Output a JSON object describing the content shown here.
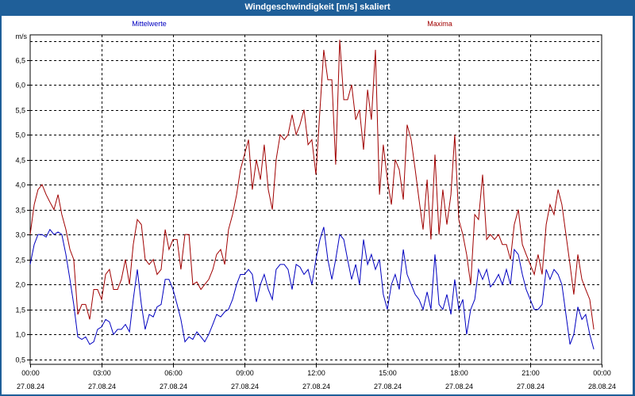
{
  "window": {
    "title": "Windgeschwindigkeit [m/s] skaliert"
  },
  "chart_data": {
    "type": "line",
    "title": "Windgeschwindigkeit [m/s] skaliert",
    "ylabel": "m/s",
    "ylim": [
      0.4,
      7.0
    ],
    "yticks": [
      0.5,
      1.0,
      1.5,
      2.0,
      2.5,
      3.0,
      3.5,
      4.0,
      4.5,
      5.0,
      5.5,
      6.0,
      6.5
    ],
    "ytick_labels": [
      "0,5",
      "1,0",
      "1,5",
      "2,0",
      "2,5",
      "3,0",
      "3,5",
      "4,0",
      "4,5",
      "5,0",
      "5,5",
      "6,0",
      "6,5"
    ],
    "xlim_hours": [
      0,
      24
    ],
    "xticks": [
      {
        "hour": 0,
        "time": "00:00",
        "date": "27.08.24"
      },
      {
        "hour": 3,
        "time": "03:00",
        "date": "27.08.24"
      },
      {
        "hour": 6,
        "time": "06:00",
        "date": "27.08.24"
      },
      {
        "hour": 9,
        "time": "09:00",
        "date": "27.08.24"
      },
      {
        "hour": 12,
        "time": "12:00",
        "date": "27.08.24"
      },
      {
        "hour": 15,
        "time": "15:00",
        "date": "27.08.24"
      },
      {
        "hour": 18,
        "time": "18:00",
        "date": "27.08.24"
      },
      {
        "hour": 21,
        "time": "21:00",
        "date": "27.08.24"
      },
      {
        "hour": 24,
        "time": "00:00",
        "date": "28.08.24"
      }
    ],
    "grid": true,
    "series": [
      {
        "name": "Mittelwerte",
        "color": "#0000c0",
        "points": [
          [
            0.0,
            2.4
          ],
          [
            0.17,
            2.8
          ],
          [
            0.33,
            3.0
          ],
          [
            0.5,
            3.0
          ],
          [
            0.67,
            2.95
          ],
          [
            0.83,
            3.1
          ],
          [
            1.0,
            3.0
          ],
          [
            1.17,
            3.05
          ],
          [
            1.33,
            3.0
          ],
          [
            1.5,
            2.6
          ],
          [
            1.67,
            2.1
          ],
          [
            1.83,
            1.6
          ],
          [
            2.0,
            0.95
          ],
          [
            2.17,
            0.9
          ],
          [
            2.33,
            0.95
          ],
          [
            2.5,
            0.8
          ],
          [
            2.67,
            0.85
          ],
          [
            2.83,
            1.1
          ],
          [
            3.0,
            1.15
          ],
          [
            3.17,
            1.3
          ],
          [
            3.33,
            1.25
          ],
          [
            3.5,
            1.0
          ],
          [
            3.67,
            1.1
          ],
          [
            3.83,
            1.1
          ],
          [
            4.0,
            1.2
          ],
          [
            4.17,
            1.05
          ],
          [
            4.33,
            1.7
          ],
          [
            4.5,
            2.3
          ],
          [
            4.67,
            1.6
          ],
          [
            4.83,
            1.1
          ],
          [
            5.0,
            1.4
          ],
          [
            5.17,
            1.35
          ],
          [
            5.33,
            1.55
          ],
          [
            5.5,
            1.6
          ],
          [
            5.67,
            2.1
          ],
          [
            5.83,
            2.1
          ],
          [
            6.0,
            1.9
          ],
          [
            6.17,
            1.6
          ],
          [
            6.33,
            1.3
          ],
          [
            6.5,
            0.85
          ],
          [
            6.67,
            0.95
          ],
          [
            6.83,
            0.9
          ],
          [
            7.0,
            1.05
          ],
          [
            7.17,
            0.95
          ],
          [
            7.33,
            0.85
          ],
          [
            7.5,
            1.0
          ],
          [
            7.67,
            1.2
          ],
          [
            7.83,
            1.4
          ],
          [
            8.0,
            1.35
          ],
          [
            8.17,
            1.45
          ],
          [
            8.33,
            1.5
          ],
          [
            8.5,
            1.7
          ],
          [
            8.67,
            2.0
          ],
          [
            8.83,
            2.2
          ],
          [
            9.0,
            2.2
          ],
          [
            9.17,
            2.3
          ],
          [
            9.33,
            2.2
          ],
          [
            9.5,
            1.65
          ],
          [
            9.67,
            2.0
          ],
          [
            9.83,
            2.2
          ],
          [
            10.0,
            1.9
          ],
          [
            10.17,
            1.7
          ],
          [
            10.33,
            2.3
          ],
          [
            10.5,
            2.4
          ],
          [
            10.67,
            2.4
          ],
          [
            10.83,
            2.3
          ],
          [
            11.0,
            1.9
          ],
          [
            11.17,
            2.4
          ],
          [
            11.33,
            2.35
          ],
          [
            11.5,
            2.2
          ],
          [
            11.67,
            2.3
          ],
          [
            11.83,
            2.0
          ],
          [
            12.0,
            2.5
          ],
          [
            12.17,
            2.9
          ],
          [
            12.33,
            3.15
          ],
          [
            12.5,
            2.5
          ],
          [
            12.67,
            2.1
          ],
          [
            12.83,
            2.5
          ],
          [
            13.0,
            3.0
          ],
          [
            13.17,
            2.9
          ],
          [
            13.33,
            2.5
          ],
          [
            13.5,
            2.1
          ],
          [
            13.67,
            2.4
          ],
          [
            13.83,
            2.0
          ],
          [
            14.0,
            2.9
          ],
          [
            14.17,
            2.4
          ],
          [
            14.33,
            2.6
          ],
          [
            14.5,
            2.3
          ],
          [
            14.67,
            2.5
          ],
          [
            14.83,
            1.8
          ],
          [
            15.0,
            1.5
          ],
          [
            15.17,
            2.0
          ],
          [
            15.33,
            2.2
          ],
          [
            15.5,
            1.9
          ],
          [
            15.67,
            2.7
          ],
          [
            15.83,
            2.2
          ],
          [
            16.0,
            2.0
          ],
          [
            16.17,
            1.8
          ],
          [
            16.33,
            1.7
          ],
          [
            16.5,
            1.5
          ],
          [
            16.67,
            1.85
          ],
          [
            16.83,
            1.5
          ],
          [
            17.0,
            2.6
          ],
          [
            17.17,
            1.6
          ],
          [
            17.33,
            1.5
          ],
          [
            17.5,
            1.8
          ],
          [
            17.67,
            1.4
          ],
          [
            17.83,
            2.1
          ],
          [
            18.0,
            1.5
          ],
          [
            18.17,
            1.7
          ],
          [
            18.33,
            1.0
          ],
          [
            18.5,
            1.5
          ],
          [
            18.67,
            1.7
          ],
          [
            18.83,
            2.3
          ],
          [
            19.0,
            2.1
          ],
          [
            19.17,
            2.3
          ],
          [
            19.33,
            1.95
          ],
          [
            19.5,
            2.05
          ],
          [
            19.67,
            2.2
          ],
          [
            19.83,
            2.0
          ],
          [
            20.0,
            2.3
          ],
          [
            20.17,
            2.0
          ],
          [
            20.33,
            2.7
          ],
          [
            20.5,
            2.6
          ],
          [
            20.67,
            2.2
          ],
          [
            20.83,
            1.9
          ],
          [
            21.0,
            1.7
          ],
          [
            21.17,
            1.5
          ],
          [
            21.33,
            1.5
          ],
          [
            21.5,
            1.6
          ],
          [
            21.67,
            2.3
          ],
          [
            21.83,
            2.1
          ],
          [
            22.0,
            2.3
          ],
          [
            22.17,
            2.2
          ],
          [
            22.33,
            2.0
          ],
          [
            22.5,
            1.4
          ],
          [
            22.67,
            0.8
          ],
          [
            22.83,
            1.0
          ],
          [
            23.0,
            1.55
          ],
          [
            23.17,
            1.3
          ],
          [
            23.33,
            1.4
          ],
          [
            23.5,
            1.0
          ],
          [
            23.67,
            0.7
          ]
        ]
      },
      {
        "name": "Maxima",
        "color": "#a00000",
        "points": [
          [
            0.0,
            3.0
          ],
          [
            0.17,
            3.6
          ],
          [
            0.33,
            3.9
          ],
          [
            0.5,
            4.0
          ],
          [
            0.67,
            3.8
          ],
          [
            0.83,
            3.65
          ],
          [
            1.0,
            3.5
          ],
          [
            1.17,
            3.8
          ],
          [
            1.33,
            3.4
          ],
          [
            1.5,
            3.1
          ],
          [
            1.67,
            2.7
          ],
          [
            1.83,
            2.5
          ],
          [
            2.0,
            1.4
          ],
          [
            2.17,
            1.6
          ],
          [
            2.33,
            1.6
          ],
          [
            2.5,
            1.3
          ],
          [
            2.67,
            1.9
          ],
          [
            2.83,
            1.9
          ],
          [
            3.0,
            1.7
          ],
          [
            3.17,
            2.2
          ],
          [
            3.33,
            2.3
          ],
          [
            3.5,
            1.9
          ],
          [
            3.67,
            1.9
          ],
          [
            3.83,
            2.1
          ],
          [
            4.0,
            2.5
          ],
          [
            4.17,
            2.0
          ],
          [
            4.33,
            2.8
          ],
          [
            4.5,
            3.3
          ],
          [
            4.67,
            3.2
          ],
          [
            4.83,
            2.5
          ],
          [
            5.0,
            2.4
          ],
          [
            5.17,
            2.5
          ],
          [
            5.33,
            2.2
          ],
          [
            5.5,
            2.3
          ],
          [
            5.67,
            3.1
          ],
          [
            5.83,
            2.7
          ],
          [
            6.0,
            2.9
          ],
          [
            6.17,
            2.9
          ],
          [
            6.33,
            2.3
          ],
          [
            6.5,
            3.0
          ],
          [
            6.67,
            3.0
          ],
          [
            6.83,
            2.0
          ],
          [
            7.0,
            2.05
          ],
          [
            7.17,
            1.9
          ],
          [
            7.33,
            2.0
          ],
          [
            7.5,
            2.1
          ],
          [
            7.67,
            2.3
          ],
          [
            7.83,
            2.6
          ],
          [
            8.0,
            2.7
          ],
          [
            8.17,
            2.4
          ],
          [
            8.33,
            3.1
          ],
          [
            8.5,
            3.4
          ],
          [
            8.67,
            3.8
          ],
          [
            8.83,
            4.3
          ],
          [
            9.0,
            4.6
          ],
          [
            9.17,
            4.9
          ],
          [
            9.33,
            3.9
          ],
          [
            9.5,
            4.5
          ],
          [
            9.67,
            4.1
          ],
          [
            9.83,
            4.8
          ],
          [
            10.0,
            3.9
          ],
          [
            10.17,
            3.5
          ],
          [
            10.33,
            4.5
          ],
          [
            10.5,
            5.0
          ],
          [
            10.67,
            4.9
          ],
          [
            10.83,
            5.0
          ],
          [
            11.0,
            5.4
          ],
          [
            11.17,
            5.0
          ],
          [
            11.33,
            5.2
          ],
          [
            11.5,
            5.5
          ],
          [
            11.67,
            4.8
          ],
          [
            11.83,
            4.9
          ],
          [
            12.0,
            4.2
          ],
          [
            12.17,
            5.5
          ],
          [
            12.33,
            6.7
          ],
          [
            12.5,
            6.1
          ],
          [
            12.67,
            6.1
          ],
          [
            12.83,
            4.4
          ],
          [
            13.0,
            6.9
          ],
          [
            13.17,
            5.7
          ],
          [
            13.33,
            5.7
          ],
          [
            13.5,
            6.0
          ],
          [
            13.67,
            5.3
          ],
          [
            13.83,
            5.5
          ],
          [
            14.0,
            4.7
          ],
          [
            14.17,
            5.9
          ],
          [
            14.33,
            5.3
          ],
          [
            14.5,
            6.7
          ],
          [
            14.67,
            3.8
          ],
          [
            14.83,
            4.8
          ],
          [
            15.0,
            4.1
          ],
          [
            15.17,
            3.6
          ],
          [
            15.33,
            4.5
          ],
          [
            15.5,
            4.3
          ],
          [
            15.67,
            3.7
          ],
          [
            15.83,
            5.2
          ],
          [
            16.0,
            4.9
          ],
          [
            16.17,
            4.3
          ],
          [
            16.33,
            3.7
          ],
          [
            16.5,
            3.1
          ],
          [
            16.67,
            4.1
          ],
          [
            16.83,
            2.9
          ],
          [
            17.0,
            4.6
          ],
          [
            17.17,
            3.0
          ],
          [
            17.33,
            3.9
          ],
          [
            17.5,
            3.2
          ],
          [
            17.67,
            3.8
          ],
          [
            17.83,
            5.0
          ],
          [
            18.0,
            3.3
          ],
          [
            18.17,
            3.0
          ],
          [
            18.33,
            2.6
          ],
          [
            18.5,
            2.0
          ],
          [
            18.67,
            3.4
          ],
          [
            18.83,
            3.3
          ],
          [
            19.0,
            4.2
          ],
          [
            19.17,
            2.9
          ],
          [
            19.33,
            3.0
          ],
          [
            19.5,
            2.9
          ],
          [
            19.67,
            3.0
          ],
          [
            19.83,
            2.8
          ],
          [
            20.0,
            2.8
          ],
          [
            20.17,
            2.5
          ],
          [
            20.33,
            3.2
          ],
          [
            20.5,
            3.5
          ],
          [
            20.67,
            2.8
          ],
          [
            20.83,
            2.6
          ],
          [
            21.0,
            2.4
          ],
          [
            21.17,
            2.2
          ],
          [
            21.33,
            2.6
          ],
          [
            21.5,
            2.2
          ],
          [
            21.67,
            3.2
          ],
          [
            21.83,
            3.6
          ],
          [
            22.0,
            3.4
          ],
          [
            22.17,
            3.9
          ],
          [
            22.33,
            3.6
          ],
          [
            22.5,
            3.0
          ],
          [
            22.67,
            2.4
          ],
          [
            22.83,
            1.8
          ],
          [
            23.0,
            2.6
          ],
          [
            23.17,
            2.1
          ],
          [
            23.33,
            1.9
          ],
          [
            23.5,
            1.7
          ],
          [
            23.67,
            1.1
          ]
        ]
      }
    ]
  }
}
